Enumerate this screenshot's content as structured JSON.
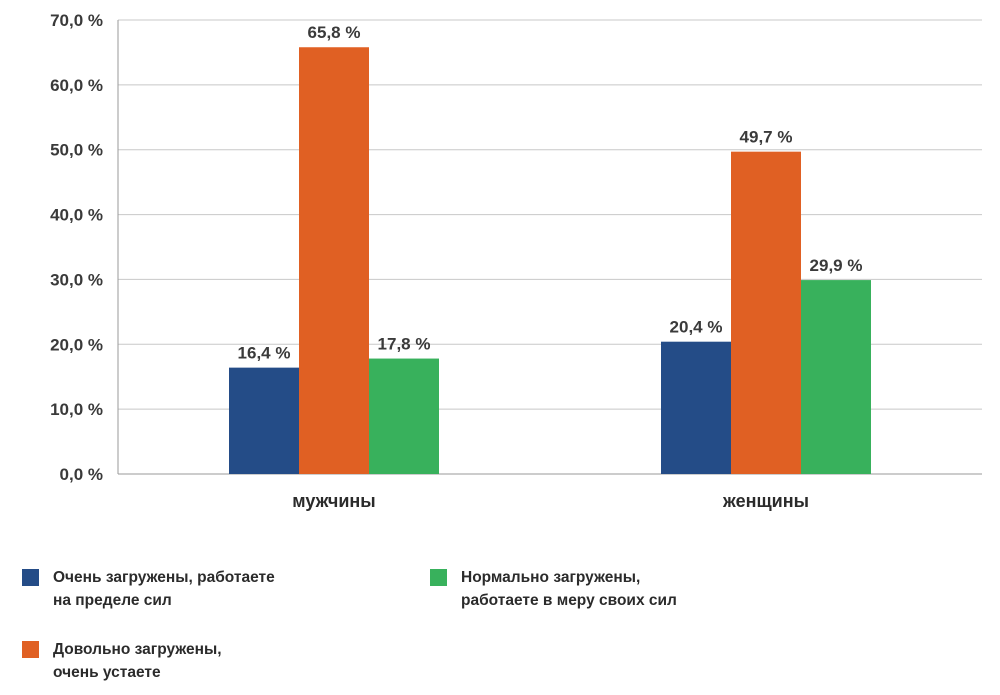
{
  "chart_data": {
    "type": "bar",
    "categories": [
      "мужчины",
      "женщины"
    ],
    "series": [
      {
        "name": "Очень загружены, работаете на пределе сил",
        "color": "#244c87",
        "values": [
          16.4,
          20.4
        ]
      },
      {
        "name": "Довольно загружены, очень устаете",
        "color": "#e06023",
        "values": [
          65.8,
          49.7
        ]
      },
      {
        "name": "Нормально загружены, работаете в меру своих сил",
        "color": "#38b15c",
        "values": [
          17.8,
          29.9
        ]
      }
    ],
    "data_labels": [
      [
        "16,4 %",
        "20,4 %"
      ],
      [
        "65,8 %",
        "49,7 %"
      ],
      [
        "17,8 %",
        "29,9 %"
      ]
    ],
    "y_ticks": [
      0,
      10,
      20,
      30,
      40,
      50,
      60,
      70
    ],
    "y_tick_labels": [
      "0,0 %",
      "10,0 %",
      "20,0 %",
      "30,0 %",
      "40,0 %",
      "50,0 %",
      "60,0 %",
      "70,0 %"
    ],
    "ylim": [
      0,
      70
    ],
    "grid": true,
    "legend_position": "bottom",
    "legend": [
      {
        "lines": [
          "Очень загружены, работаете",
          "на пределе сил"
        ],
        "color": "#244c87"
      },
      {
        "lines": [
          "Нормально загружены,",
          "работаете в меру своих сил"
        ],
        "color": "#38b15c"
      },
      {
        "lines": [
          "Довольно загружены,",
          "очень устаете"
        ],
        "color": "#e06023"
      }
    ]
  }
}
